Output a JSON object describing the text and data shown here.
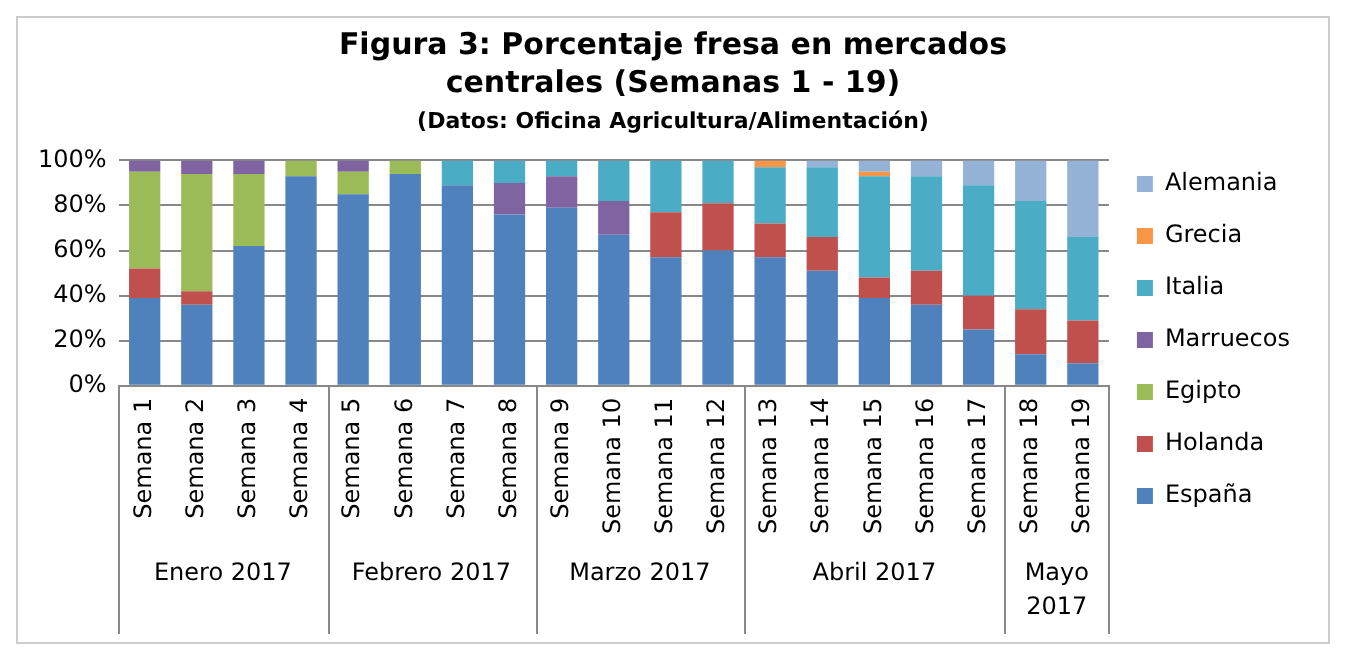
{
  "chart_data": {
    "type": "bar",
    "title": "Figura 3: Porcentaje fresa en mercados centrales (Semanas 1 - 19)",
    "subtitle": "(Datos: Oficina Agricultura/Alimentación)",
    "categories": [
      "Semana 1",
      "Semana 2",
      "Semana 3",
      "Semana 4",
      "Semana 5",
      "Semana 6",
      "Semana 7",
      "Semana 8",
      "Semana 9",
      "Semana 10",
      "Semana 11",
      "Semana 12",
      "Semana 13",
      "Semana 14",
      "Semana 15",
      "Semana 16",
      "Semana 17",
      "Semana 18",
      "Semana 19"
    ],
    "annotations": [
      "Enero 2017",
      "Febrero 2017",
      "Marzo 2017",
      "Abril 2017",
      "Mayo 2017"
    ],
    "stacked": true,
    "series": [
      {
        "name": "España",
        "color": "#4f81bd",
        "values": [
          39,
          36,
          62,
          93,
          85,
          94,
          89,
          76,
          79,
          67,
          57,
          60,
          57,
          51,
          39,
          36,
          25,
          14,
          10
        ]
      },
      {
        "name": "Holanda",
        "color": "#c0504d",
        "values": [
          13,
          6,
          0,
          0,
          0,
          0,
          0,
          0,
          0,
          0,
          20,
          21,
          15,
          15,
          9,
          15,
          15,
          20,
          19
        ]
      },
      {
        "name": "Egipto",
        "color": "#9bbb59",
        "values": [
          43,
          52,
          32,
          7,
          10,
          6,
          0,
          0,
          0,
          0,
          0,
          0,
          0,
          0,
          0,
          0,
          0,
          0,
          0
        ]
      },
      {
        "name": "Marruecos",
        "color": "#8064a2",
        "values": [
          5,
          6,
          6,
          0,
          5,
          0,
          0,
          14,
          14,
          15,
          0,
          0,
          0,
          0,
          0,
          0,
          0,
          0,
          0
        ]
      },
      {
        "name": "Italia",
        "color": "#4bacc6",
        "values": [
          0,
          0,
          0,
          0,
          0,
          0,
          11,
          10,
          7,
          18,
          23,
          19,
          25,
          31,
          45,
          42,
          49,
          48,
          37
        ]
      },
      {
        "name": "Grecia",
        "color": "#f79646",
        "values": [
          0,
          0,
          0,
          0,
          0,
          0,
          0,
          0,
          0,
          0,
          0,
          0,
          3,
          0,
          2,
          0,
          0,
          0,
          0
        ]
      },
      {
        "name": "Alemania",
        "color": "#95b3d7",
        "values": [
          0,
          0,
          0,
          0,
          0,
          0,
          0,
          0,
          0,
          0,
          0,
          0,
          0,
          3,
          5,
          7,
          11,
          18,
          34
        ]
      }
    ],
    "ylim": [
      0,
      100
    ],
    "yticks": [
      {
        "value": 0,
        "label": "0%"
      },
      {
        "value": 20,
        "label": "20%"
      },
      {
        "value": 40,
        "label": "40%"
      },
      {
        "value": 60,
        "label": "60%"
      },
      {
        "value": 80,
        "label": "80%"
      },
      {
        "value": 100,
        "label": "100%"
      }
    ],
    "grid": "y",
    "legend": "right"
  }
}
